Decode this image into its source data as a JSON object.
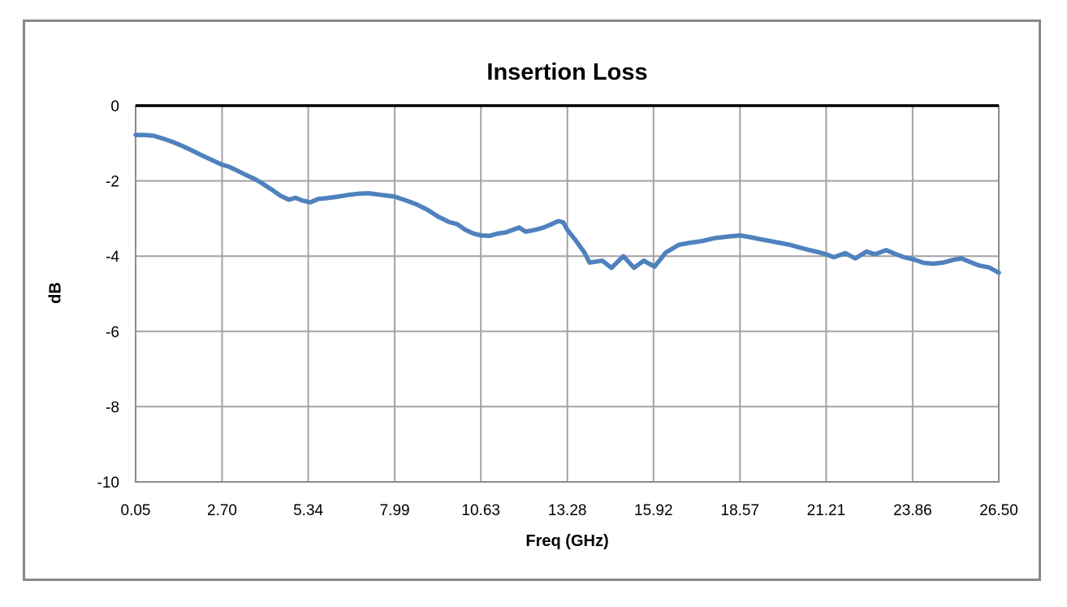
{
  "chart_data": {
    "type": "line",
    "title": "Insertion Loss",
    "xlabel": "Freq (GHz)",
    "ylabel": "dB",
    "x_ticks": [
      "0.05",
      "2.70",
      "5.34",
      "7.99",
      "10.63",
      "13.28",
      "15.92",
      "18.57",
      "21.21",
      "23.86",
      "26.50"
    ],
    "y_ticks": [
      "0",
      "-2",
      "-4",
      "-6",
      "-8",
      "-10"
    ],
    "xlim": [
      0.05,
      26.5
    ],
    "ylim": [
      -10,
      0
    ],
    "grid": true,
    "legend": "none",
    "colors": {
      "line": "#4F81BD",
      "gridline": "#A3A3A3",
      "plot_border": "#8C8C8C",
      "zero_axis": "#000000",
      "outer_border": "#898989"
    },
    "series": [
      {
        "name": "Insertion Loss",
        "color": "#4F81BD",
        "points": [
          [
            0.05,
            -0.78
          ],
          [
            0.3,
            -0.78
          ],
          [
            0.6,
            -0.8
          ],
          [
            0.9,
            -0.88
          ],
          [
            1.2,
            -0.97
          ],
          [
            1.5,
            -1.08
          ],
          [
            1.8,
            -1.2
          ],
          [
            2.1,
            -1.33
          ],
          [
            2.4,
            -1.45
          ],
          [
            2.7,
            -1.57
          ],
          [
            2.9,
            -1.62
          ],
          [
            3.1,
            -1.7
          ],
          [
            3.4,
            -1.83
          ],
          [
            3.7,
            -1.95
          ],
          [
            3.9,
            -2.05
          ],
          [
            4.2,
            -2.22
          ],
          [
            4.5,
            -2.4
          ],
          [
            4.75,
            -2.5
          ],
          [
            4.95,
            -2.45
          ],
          [
            5.15,
            -2.52
          ],
          [
            5.4,
            -2.57
          ],
          [
            5.65,
            -2.48
          ],
          [
            5.9,
            -2.46
          ],
          [
            6.25,
            -2.42
          ],
          [
            6.6,
            -2.37
          ],
          [
            6.9,
            -2.34
          ],
          [
            7.2,
            -2.33
          ],
          [
            7.55,
            -2.37
          ],
          [
            7.99,
            -2.42
          ],
          [
            8.3,
            -2.51
          ],
          [
            8.65,
            -2.62
          ],
          [
            9.0,
            -2.77
          ],
          [
            9.3,
            -2.94
          ],
          [
            9.65,
            -3.09
          ],
          [
            9.9,
            -3.15
          ],
          [
            10.15,
            -3.3
          ],
          [
            10.4,
            -3.4
          ],
          [
            10.63,
            -3.45
          ],
          [
            10.9,
            -3.46
          ],
          [
            11.15,
            -3.4
          ],
          [
            11.4,
            -3.37
          ],
          [
            11.8,
            -3.24
          ],
          [
            12.0,
            -3.35
          ],
          [
            12.3,
            -3.3
          ],
          [
            12.55,
            -3.24
          ],
          [
            12.8,
            -3.15
          ],
          [
            13.0,
            -3.07
          ],
          [
            13.15,
            -3.1
          ],
          [
            13.28,
            -3.3
          ],
          [
            13.55,
            -3.6
          ],
          [
            13.8,
            -3.9
          ],
          [
            13.96,
            -4.17
          ],
          [
            14.35,
            -4.12
          ],
          [
            14.63,
            -4.31
          ],
          [
            15.0,
            -4.0
          ],
          [
            15.32,
            -4.31
          ],
          [
            15.62,
            -4.12
          ],
          [
            15.95,
            -4.28
          ],
          [
            16.3,
            -3.9
          ],
          [
            16.7,
            -3.7
          ],
          [
            17.0,
            -3.65
          ],
          [
            17.4,
            -3.6
          ],
          [
            17.8,
            -3.52
          ],
          [
            18.2,
            -3.48
          ],
          [
            18.57,
            -3.45
          ],
          [
            18.9,
            -3.5
          ],
          [
            19.2,
            -3.55
          ],
          [
            19.5,
            -3.6
          ],
          [
            19.8,
            -3.65
          ],
          [
            20.1,
            -3.7
          ],
          [
            20.4,
            -3.77
          ],
          [
            20.7,
            -3.84
          ],
          [
            21.0,
            -3.9
          ],
          [
            21.21,
            -3.95
          ],
          [
            21.45,
            -4.03
          ],
          [
            21.8,
            -3.92
          ],
          [
            22.1,
            -4.06
          ],
          [
            22.45,
            -3.88
          ],
          [
            22.7,
            -3.95
          ],
          [
            23.05,
            -3.84
          ],
          [
            23.35,
            -3.95
          ],
          [
            23.6,
            -4.03
          ],
          [
            23.86,
            -4.08
          ],
          [
            24.2,
            -4.18
          ],
          [
            24.5,
            -4.2
          ],
          [
            24.8,
            -4.17
          ],
          [
            25.1,
            -4.1
          ],
          [
            25.35,
            -4.06
          ],
          [
            25.6,
            -4.15
          ],
          [
            25.9,
            -4.25
          ],
          [
            26.2,
            -4.3
          ],
          [
            26.5,
            -4.44
          ]
        ]
      }
    ]
  }
}
